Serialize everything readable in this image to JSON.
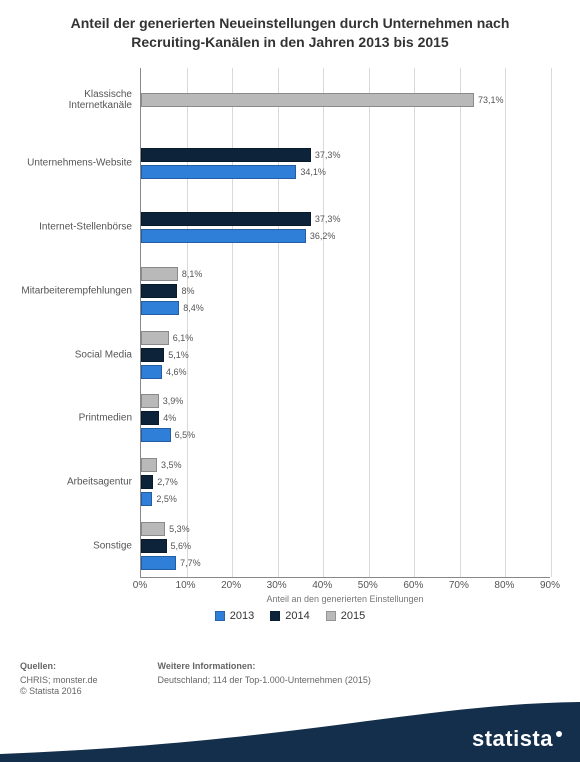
{
  "title": "Anteil der generierten Neueinstellungen durch Unternehmen nach Recruiting-Kanälen in den Jahren 2013 bis 2015",
  "chart": {
    "type": "bar-horizontal-grouped",
    "x_axis": {
      "title": "Anteil an den generierten Einstellungen",
      "min": 0,
      "max": 90,
      "tick_step": 10,
      "tick_suffix": "%",
      "grid_color": "#d9d9d9",
      "axis_color": "#888888"
    },
    "series": [
      {
        "name": "2013",
        "color": "#2f7ed8"
      },
      {
        "name": "2014",
        "color": "#0d233a"
      },
      {
        "name": "2015",
        "color": "#b9b9b9"
      }
    ],
    "categories": [
      {
        "label": "Klassische Internetkanäle",
        "values": {
          "2013": null,
          "2014": null,
          "2015": 73.1
        }
      },
      {
        "label": "Unternehmens-Website",
        "values": {
          "2013": 34.1,
          "2014": 37.3,
          "2015": null
        }
      },
      {
        "label": "Internet-Stellenbörse",
        "values": {
          "2013": 36.2,
          "2014": 37.3,
          "2015": null
        }
      },
      {
        "label": "Mitarbeiterempfehlungen",
        "values": {
          "2013": 8.4,
          "2014": 8.0,
          "2015": 8.1
        }
      },
      {
        "label": "Social Media",
        "values": {
          "2013": 4.6,
          "2014": 5.1,
          "2015": 6.1
        }
      },
      {
        "label": "Printmedien",
        "values": {
          "2013": 6.5,
          "2014": 4.0,
          "2015": 3.9
        }
      },
      {
        "label": "Arbeitsagentur",
        "values": {
          "2013": 2.5,
          "2014": 2.7,
          "2015": 3.5
        }
      },
      {
        "label": "Sonstige",
        "values": {
          "2013": 7.7,
          "2014": 5.6,
          "2015": 5.3
        }
      }
    ],
    "value_label_suffix": "%",
    "value_label_decimals_locale": "de",
    "background_color": "#ffffff"
  },
  "footer": {
    "sources_title": "Quellen:",
    "sources_line1": "CHRIS; monster.de",
    "sources_line2": "© Statista 2016",
    "info_title": "Weitere Informationen:",
    "info_line1": "Deutschland; 114 der Top-1.000-Unternehmen (2015)"
  },
  "brand": {
    "logo_text": "statista",
    "swoosh_color": "#142f4b"
  }
}
